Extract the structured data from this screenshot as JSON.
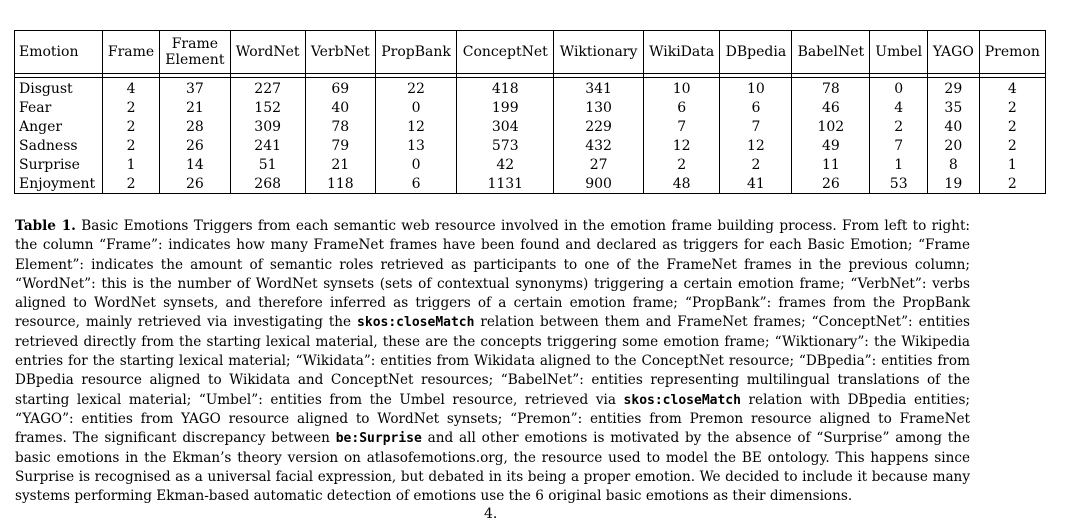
{
  "table": {
    "columns": [
      "Emotion",
      "Frame",
      "Frame Element",
      "WordNet",
      "VerbNet",
      "PropBank",
      "ConceptNet",
      "Wiktionary",
      "WikiData",
      "DBpedia",
      "BabelNet",
      "Umbel",
      "YAGO",
      "Premon"
    ],
    "header": {
      "emotion": "Emotion",
      "frame": "Frame",
      "frame_element_line1": "Frame",
      "frame_element_line2": "Element",
      "wordnet": "WordNet",
      "verbnet": "VerbNet",
      "propbank": "PropBank",
      "conceptnet": "ConceptNet",
      "wiktionary": "Wiktionary",
      "wikidata": "WikiData",
      "dbpedia": "DBpedia",
      "babelnet": "BabelNet",
      "umbel": "Umbel",
      "yago": "YAGO",
      "premon": "Premon"
    },
    "rows": [
      {
        "label": "Disgust",
        "values": [
          "4",
          "37",
          "227",
          "69",
          "22",
          "418",
          "341",
          "10",
          "10",
          "78",
          "0",
          "29",
          "4"
        ]
      },
      {
        "label": "Fear",
        "values": [
          "2",
          "21",
          "152",
          "40",
          "0",
          "199",
          "130",
          "6",
          "6",
          "46",
          "4",
          "35",
          "2"
        ]
      },
      {
        "label": "Anger",
        "values": [
          "2",
          "28",
          "309",
          "78",
          "12",
          "304",
          "229",
          "7",
          "7",
          "102",
          "2",
          "40",
          "2"
        ]
      },
      {
        "label": "Sadness",
        "values": [
          "2",
          "26",
          "241",
          "79",
          "13",
          "573",
          "432",
          "12",
          "12",
          "49",
          "7",
          "20",
          "2"
        ]
      },
      {
        "label": "Surprise",
        "values": [
          "1",
          "14",
          "51",
          "21",
          "0",
          "42",
          "27",
          "2",
          "2",
          "11",
          "1",
          "8",
          "1"
        ]
      },
      {
        "label": "Enjoyment",
        "values": [
          "2",
          "26",
          "268",
          "118",
          "6",
          "1131",
          "900",
          "48",
          "41",
          "26",
          "53",
          "19",
          "2"
        ]
      }
    ]
  },
  "caption": {
    "label": "Table 1.",
    "seg1": " Basic Emotions Triggers from each semantic web resource involved in the emotion frame building process. From left to right: the column “Frame”: indicates how many FrameNet frames have been found and declared as triggers for each Basic Emotion; “Frame Element”: indicates the amount of semantic roles retrieved as participants to one of the FrameNet frames in the previous column; “WordNet”: this is the number of WordNet synsets (sets of contextual synonyms) triggering a certain emotion frame; “VerbNet”: verbs aligned to WordNet synsets, and therefore inferred as triggers of a certain emotion frame; “PropBank”: frames from the PropBank resource, mainly retrieved via investigating the ",
    "code1": "skos:closeMatch",
    "seg2": " relation between them and FrameNet frames; “ConceptNet”: entities retrieved directly from the starting lexical material, these are the concepts triggering some emotion frame; “Wiktionary”: the Wikipedia entries for the starting lexical material; “Wikidata”: entities from Wikidata aligned to the ConceptNet resource; “DBpedia”: entities from DBpedia resource aligned to Wikidata and ConceptNet resources; “BabelNet”: entities representing multilingual translations of the starting lexical material; “Umbel”: entities from the Umbel resource, retrieved via ",
    "code2": "skos:closeMatch",
    "seg3": " relation with DBpedia entities; “YAGO”: entities from YAGO resource aligned to WordNet synsets; “Premon”: entities from Premon resource aligned to FrameNet frames. The significant discrepancy between ",
    "code3": "be:Surprise",
    "seg4": " and all other emotions is motivated by the absence of “Surprise” among the basic emotions in the Ekman’s theory version on atlasofemotions.org, the resource used to model the BE ontology. This happens since Surprise is recognised as a universal facial expression, but debated in its being a proper emotion. We decided to include it because many systems performing Ekman-based automatic detection of emotions use the 6 original basic emotions as their dimensions."
  },
  "page_number": "4."
}
